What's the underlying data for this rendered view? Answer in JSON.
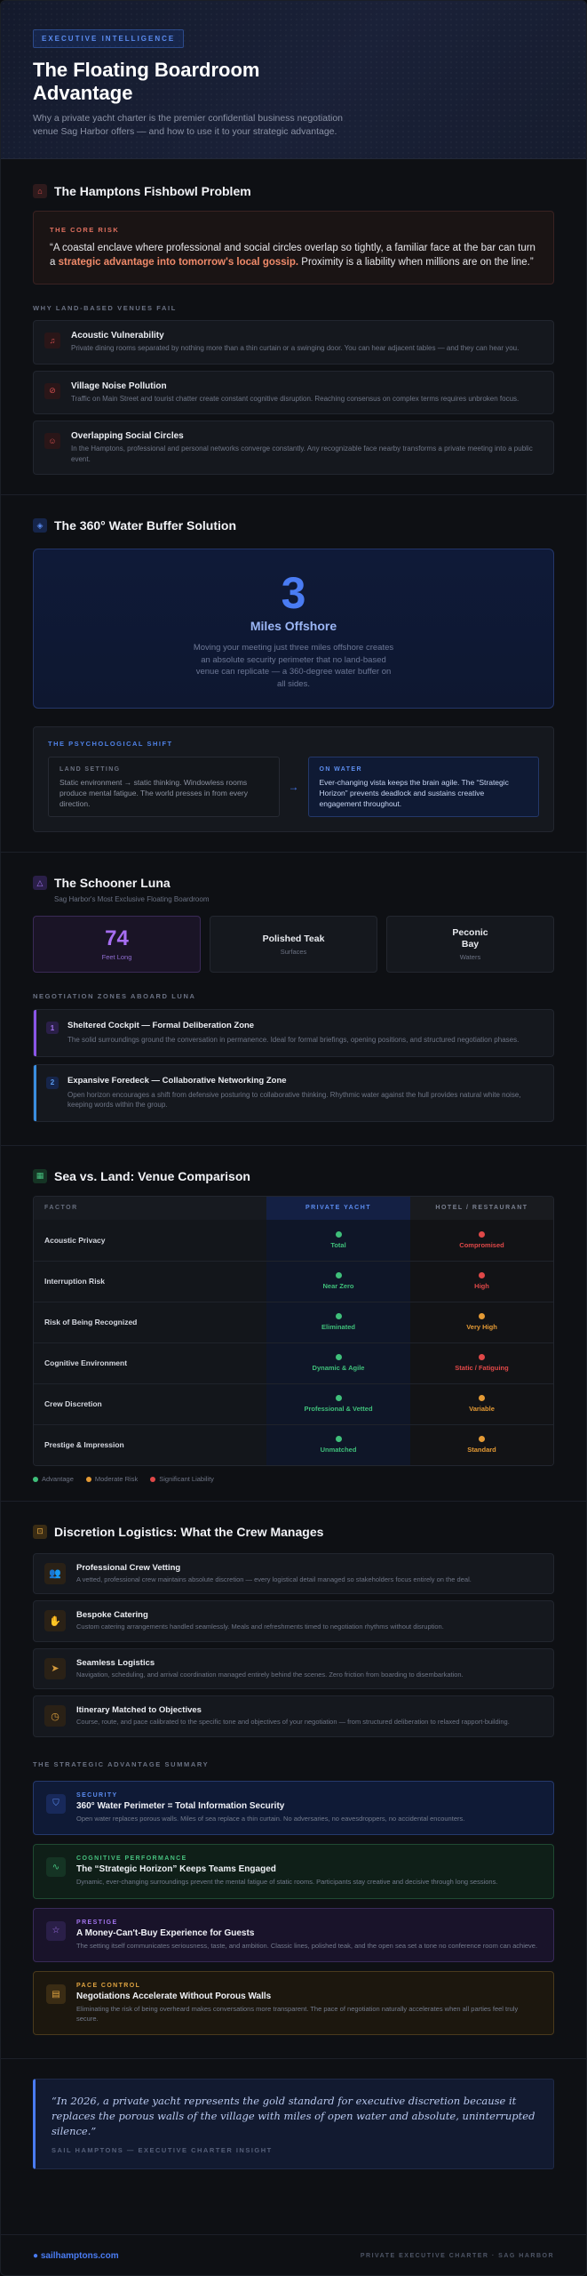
{
  "hero": {
    "eyebrow": "EXECUTIVE INTELLIGENCE",
    "title": "The Floating Boardroom Advantage",
    "subtitle": "Why a private yacht charter is the premier confidential business negotiation venue Sag Harbor offers — and how to use it to your strategic advantage."
  },
  "fishbowl": {
    "title": "The Hamptons Fishbowl Problem",
    "core_tag": "THE CORE RISK",
    "quote_a": "“A coastal enclave where professional and social circles overlap so tightly, a familiar face at the bar can turn a ",
    "quote_hl": "strategic advantage into tomorrow's local gossip.",
    "quote_b": " Proximity is a liability when millions are on the line.”",
    "fail_label": "WHY LAND-BASED VENUES FAIL",
    "items": [
      {
        "title": "Acoustic Vulnerability",
        "desc": "Private dining rooms separated by nothing more than a thin curtain or a swinging door. You can hear adjacent tables — and they can hear you."
      },
      {
        "title": "Village Noise Pollution",
        "desc": "Traffic on Main Street and tourist chatter create constant cognitive disruption. Reaching consensus on complex terms requires unbroken focus."
      },
      {
        "title": "Overlapping Social Circles",
        "desc": "In the Hamptons, professional and personal networks converge constantly. Any recognizable face nearby transforms a private meeting into a public event."
      }
    ]
  },
  "buffer": {
    "title": "The 360° Water Buffer Solution",
    "big": "3",
    "big_sub": "Miles Offshore",
    "desc": "Moving your meeting just three miles offshore creates an absolute security perimeter that no land-based venue can replicate — a 360-degree water buffer on all sides.",
    "shift_tag": "THE PSYCHOLOGICAL SHIFT",
    "land_k": "LAND SETTING",
    "land_v": "Static environment → static thinking. Windowless rooms produce mental fatigue. The world presses in from every direction.",
    "arrow": "→",
    "water_k": "ON WATER",
    "water_v": "Ever-changing vista keeps the brain agile. The “Strategic Horizon” prevents deadlock and sustains creative engagement throughout."
  },
  "schooner": {
    "title": "The Schooner Luna",
    "subtitle": "Sag Harbor's Most Exclusive Floating Boardroom",
    "stats": [
      {
        "value": "74",
        "label": "Feet Long"
      },
      {
        "value": "Polished Teak",
        "label": "Surfaces"
      },
      {
        "value": "Peconic Bay",
        "label": "Waters"
      }
    ],
    "zones_label": "NEGOTIATION ZONES ABOARD LUNA",
    "zones": [
      {
        "num": "1",
        "title": "Sheltered Cockpit — Formal Deliberation Zone",
        "desc": "The solid surroundings ground the conversation in permanence. Ideal for formal briefings, opening positions, and structured negotiation phases."
      },
      {
        "num": "2",
        "title": "Expansive Foredeck — Collaborative Networking Zone",
        "desc": "Open horizon encourages a shift from defensive posturing to collaborative thinking. Rhythmic water against the hull provides natural white noise, keeping words within the group."
      }
    ]
  },
  "compare": {
    "title": "Sea vs. Land: Venue Comparison",
    "headers": [
      "FACTOR",
      "PRIVATE YACHT",
      "HOTEL / RESTAURANT"
    ],
    "rows": [
      {
        "factor": "Acoustic Privacy",
        "yacht": "Total",
        "land": "Compromised",
        "yc": "#3fbf7a",
        "lc": "#e04848"
      },
      {
        "factor": "Interruption Risk",
        "yacht": "Near Zero",
        "land": "High",
        "yc": "#3fbf7a",
        "lc": "#e04848"
      },
      {
        "factor": "Risk of Being Recognized",
        "yacht": "Eliminated",
        "land": "Very High",
        "yc": "#3fbf7a",
        "lc": "#e49a35"
      },
      {
        "factor": "Cognitive Environment",
        "yacht": "Dynamic & Agile",
        "land": "Static / Fatiguing",
        "yc": "#3fbf7a",
        "lc": "#e04848"
      },
      {
        "factor": "Crew Discretion",
        "yacht": "Professional & Vetted",
        "land": "Variable",
        "yc": "#3fbf7a",
        "lc": "#e49a35"
      },
      {
        "factor": "Prestige & Impression",
        "yacht": "Unmatched",
        "land": "Standard",
        "yc": "#3fbf7a",
        "lc": "#e49a35"
      }
    ],
    "legend": [
      {
        "label": "Advantage",
        "color": "#3fbf7a"
      },
      {
        "label": "Moderate Risk",
        "color": "#e49a35"
      },
      {
        "label": "Significant Liability",
        "color": "#e04848"
      }
    ]
  },
  "logistics": {
    "title": "Discretion Logistics: What the Crew Manages",
    "items": [
      {
        "icon": "👥",
        "title": "Professional Crew Vetting",
        "desc": "A vetted, professional crew maintains absolute discretion — every logistical detail managed so stakeholders focus entirely on the deal."
      },
      {
        "icon": "✋",
        "title": "Bespoke Catering",
        "desc": "Custom catering arrangements handled seamlessly. Meals and refreshments timed to negotiation rhythms without disruption."
      },
      {
        "icon": "➤",
        "title": "Seamless Logistics",
        "desc": "Navigation, scheduling, and arrival coordination managed entirely behind the scenes. Zero friction from boarding to disembarkation."
      },
      {
        "icon": "◷",
        "title": "Itinerary Matched to Objectives",
        "desc": "Course, route, and pace calibrated to the specific tone and objectives of your negotiation — from structured deliberation to relaxed rapport-building."
      }
    ]
  },
  "summary": {
    "label": "THE STRATEGIC ADVANTAGE SUMMARY",
    "items": [
      {
        "k": "SECURITY",
        "t": "360° Water Perimeter = Total Information Security",
        "d": "Open water replaces porous walls. Miles of sea replace a thin curtain. No adversaries, no eavesdroppers, no accidental encounters."
      },
      {
        "k": "COGNITIVE PERFORMANCE",
        "t": "The “Strategic Horizon” Keeps Teams Engaged",
        "d": "Dynamic, ever-changing surroundings prevent the mental fatigue of static rooms. Participants stay creative and decisive through long sessions."
      },
      {
        "k": "PRESTIGE",
        "t": "A Money-Can't-Buy Experience for Guests",
        "d": "The setting itself communicates seriousness, taste, and ambition. Classic lines, polished teak, and the open sea set a tone no conference room can achieve."
      },
      {
        "k": "PACE CONTROL",
        "t": "Negotiations Accelerate Without Porous Walls",
        "d": "Eliminating the risk of being overheard makes conversations more transparent. The pace of negotiation naturally accelerates when all parties feel truly secure."
      }
    ]
  },
  "final": {
    "quote": "“In 2026, a private yacht represents the gold standard for executive discretion because it replaces the porous walls of the village with miles of open water and absolute, uninterrupted silence.”",
    "source": "SAIL HAMPTONS — EXECUTIVE CHARTER INSIGHT"
  },
  "footer": {
    "brand": "● sailhamptons.com",
    "tag": "PRIVATE EXECUTIVE CHARTER · SAG HARBOR"
  }
}
